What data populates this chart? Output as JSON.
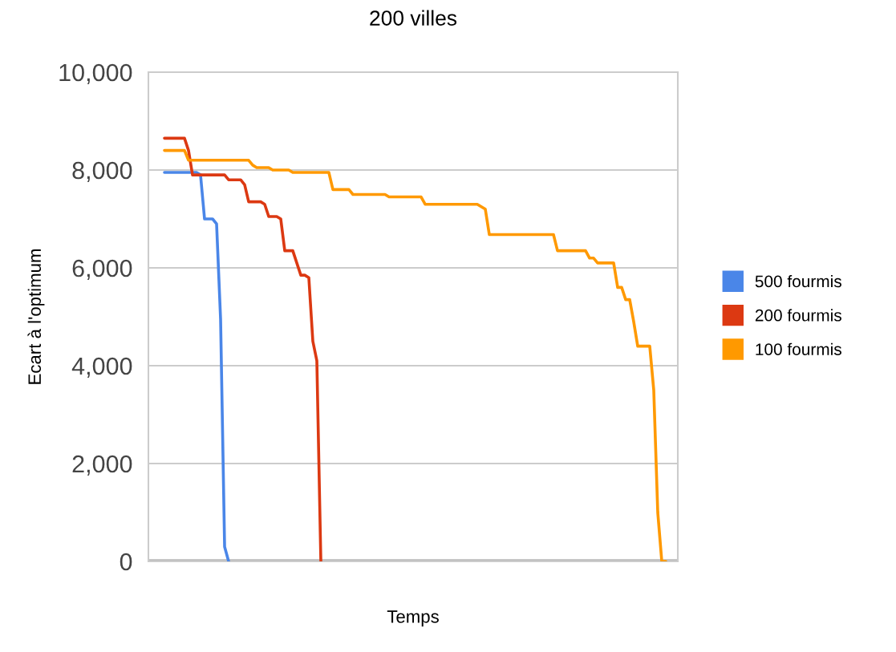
{
  "chart_data": {
    "type": "line",
    "title": "200 villes",
    "xlabel": "Temps",
    "ylabel": "Ecart à l'optimum",
    "categories": [
      null,
      null,
      null,
      null,
      null,
      null,
      null,
      null,
      null,
      null,
      null,
      null,
      null,
      null,
      null,
      null,
      null,
      null,
      null,
      null,
      null,
      null,
      null,
      null,
      null,
      null,
      null,
      null,
      null,
      null,
      null,
      null,
      null,
      null,
      null,
      null,
      null,
      null,
      null,
      null,
      null,
      null,
      null,
      null,
      null,
      null,
      null,
      null,
      null,
      null,
      null,
      null,
      null,
      null,
      null,
      null,
      null,
      null,
      null,
      null,
      null,
      null,
      null,
      null,
      null,
      null,
      null,
      null,
      null,
      null,
      null,
      null,
      null,
      null,
      null,
      null,
      null,
      null,
      null,
      null,
      null,
      null,
      null,
      null,
      null,
      null,
      null,
      null,
      null,
      null,
      null,
      null,
      null,
      null,
      null,
      null,
      null,
      null,
      null,
      null,
      null,
      null,
      null,
      null,
      null,
      null,
      null,
      null,
      null,
      null,
      null,
      null,
      null,
      null,
      null,
      null,
      null,
      null,
      null,
      null,
      null,
      null,
      null,
      null,
      null,
      null
    ],
    "series": [
      {
        "name": "500 fourmis",
        "color": "#4a86e8",
        "values": [
          7950,
          7950,
          7950,
          7950,
          7950,
          7950,
          7950,
          7950,
          7950,
          7900,
          7000,
          7000,
          7000,
          6900,
          4950,
          300,
          0,
          null,
          null,
          null,
          null,
          null,
          null,
          null,
          null,
          null,
          null,
          null,
          null,
          null,
          null,
          null,
          null,
          null,
          null,
          null,
          null,
          null,
          null,
          null,
          null,
          null,
          null,
          null,
          null,
          null,
          null,
          null,
          null,
          null,
          null,
          null,
          null,
          null,
          null,
          null,
          null,
          null,
          null,
          null,
          null,
          null,
          null,
          null,
          null,
          null,
          null,
          null,
          null,
          null,
          null,
          null,
          null,
          null,
          null,
          null,
          null,
          null,
          null,
          null,
          null,
          null,
          null,
          null,
          null,
          null,
          null,
          null,
          null,
          null,
          null,
          null,
          null,
          null,
          null,
          null,
          null,
          null,
          null,
          null,
          null,
          null,
          null,
          null,
          null,
          null,
          null,
          null,
          null,
          null,
          null,
          null,
          null,
          null,
          null,
          null,
          null,
          null,
          null,
          null,
          null,
          null,
          null,
          null,
          null,
          null
        ]
      },
      {
        "name": "200 fourmis",
        "color": "#dc3912",
        "values": [
          8650,
          8650,
          8650,
          8650,
          8650,
          8650,
          8400,
          7900,
          7900,
          7900,
          7900,
          7900,
          7900,
          7900,
          7900,
          7900,
          7800,
          7800,
          7800,
          7800,
          7700,
          7350,
          7350,
          7350,
          7350,
          7300,
          7050,
          7050,
          7050,
          7000,
          6350,
          6350,
          6350,
          6100,
          5850,
          5850,
          5800,
          4500,
          4100,
          0,
          null,
          null,
          null,
          null,
          null,
          null,
          null,
          null,
          null,
          null,
          null,
          null,
          null,
          null,
          null,
          null,
          null,
          null,
          null,
          null,
          null,
          null,
          null,
          null,
          null,
          null,
          null,
          null,
          null,
          null,
          null,
          null,
          null,
          null,
          null,
          null,
          null,
          null,
          null,
          null,
          null,
          null,
          null,
          null,
          null,
          null,
          null,
          null,
          null,
          null,
          null,
          null,
          null,
          null,
          null,
          null,
          null,
          null,
          null,
          null,
          null,
          null,
          null,
          null,
          null,
          null,
          null,
          null,
          null,
          null,
          null,
          null,
          null,
          null,
          null,
          null,
          null,
          null,
          null,
          null,
          null,
          null,
          null,
          null,
          null,
          null
        ]
      },
      {
        "name": "100 fourmis",
        "color": "#ff9900",
        "values": [
          8400,
          8400,
          8400,
          8400,
          8400,
          8400,
          8200,
          8200,
          8200,
          8200,
          8200,
          8200,
          8200,
          8200,
          8200,
          8200,
          8200,
          8200,
          8200,
          8200,
          8200,
          8200,
          8100,
          8050,
          8050,
          8050,
          8050,
          8000,
          8000,
          8000,
          8000,
          8000,
          7950,
          7950,
          7950,
          7950,
          7950,
          7950,
          7950,
          7950,
          7950,
          7950,
          7600,
          7600,
          7600,
          7600,
          7600,
          7500,
          7500,
          7500,
          7500,
          7500,
          7500,
          7500,
          7500,
          7500,
          7450,
          7450,
          7450,
          7450,
          7450,
          7450,
          7450,
          7450,
          7450,
          7300,
          7300,
          7300,
          7300,
          7300,
          7300,
          7300,
          7300,
          7300,
          7300,
          7300,
          7300,
          7300,
          7300,
          7250,
          7200,
          6680,
          6680,
          6680,
          6680,
          6680,
          6680,
          6680,
          6680,
          6680,
          6680,
          6680,
          6680,
          6680,
          6680,
          6680,
          6680,
          6680,
          6350,
          6350,
          6350,
          6350,
          6350,
          6350,
          6350,
          6350,
          6200,
          6200,
          6100,
          6100,
          6100,
          6100,
          6100,
          5600,
          5600,
          5350,
          5350,
          4900,
          4400,
          4400,
          4400,
          4400,
          3500,
          1000,
          0,
          0
        ]
      }
    ],
    "ylim": [
      0,
      10000
    ],
    "yticks": [
      0,
      {
        "value": 2000,
        "label": "2,000"
      },
      {
        "value": 4000,
        "label": "4,000"
      },
      {
        "value": 6000,
        "label": "6,000"
      },
      {
        "value": 8000,
        "label": "8,000"
      },
      {
        "value": 10000,
        "label": "10,000"
      }
    ],
    "grid": "y",
    "legend": "right",
    "marker": "none",
    "line_style": "solid"
  }
}
